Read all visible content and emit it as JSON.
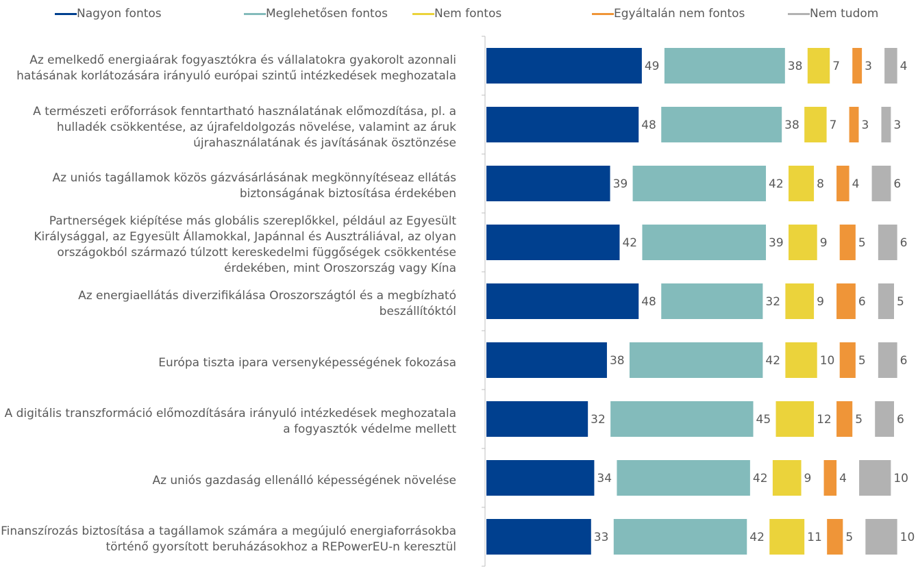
{
  "chart_data": {
    "type": "bar",
    "orientation": "horizontal",
    "stacked": true,
    "categories": [
      "Az emelkedő energiaárak fogyasztókra és vállalatokra gyakorolt azonnali hatásának korlátozására irányuló európai szintű intézkedések meghozatala",
      "A természeti erőforrások fenntartható használatának előmozdítása, pl. a hulladék csökkentése, az újrafeldolgozás növelése, valamint az áruk újrahasználatának és javításának ösztönzése",
      "Az uniós tagállamok közös gázvásárlásának megkönnyítéseaz ellátás biztonságának biztosítása érdekében",
      "Partnerségek kiépítése más globális szereplőkkel, például az Egyesült Királysággal, az Egyesült Államokkal, Japánnal és Ausztráliával, az olyan országokból származó túlzott kereskedelmi függőségek csökkentése érdekében, mint Oroszország vagy Kína",
      "Az energiaellátás diverzifikálása Oroszországtól és a megbízható beszállítóktól",
      "Európa tiszta ipara versenyképességének fokozása",
      "A digitális transzformáció előmozdítására irányuló intézkedések meghozatala a fogyasztók védelme mellett",
      "Az uniós gazdaság ellenálló képességének növelése",
      "Finanszírozás biztosítása a tagállamok számára a megújuló energiaforrásokba történő gyorsított beruházásokhoz a REPowerEU-n keresztül"
    ],
    "series": [
      {
        "name": "Nagyon fontos",
        "color": "#00408f",
        "values": [
          49,
          48,
          39,
          42,
          48,
          38,
          32,
          34,
          33
        ]
      },
      {
        "name": "Meglehetősen fontos",
        "color": "#83bbbb",
        "values": [
          38,
          38,
          42,
          39,
          32,
          42,
          45,
          42,
          42
        ]
      },
      {
        "name": "Nem fontos",
        "color": "#ebd33b",
        "values": [
          7,
          7,
          8,
          9,
          9,
          10,
          12,
          9,
          11
        ]
      },
      {
        "name": "Egyáltalán nem fontos",
        "color": "#ef9538",
        "values": [
          3,
          3,
          4,
          5,
          6,
          5,
          5,
          4,
          5
        ]
      },
      {
        "name": "Nem tudom",
        "color": "#b2b2b2",
        "values": [
          4,
          3,
          6,
          6,
          5,
          6,
          6,
          10,
          10
        ]
      }
    ]
  }
}
